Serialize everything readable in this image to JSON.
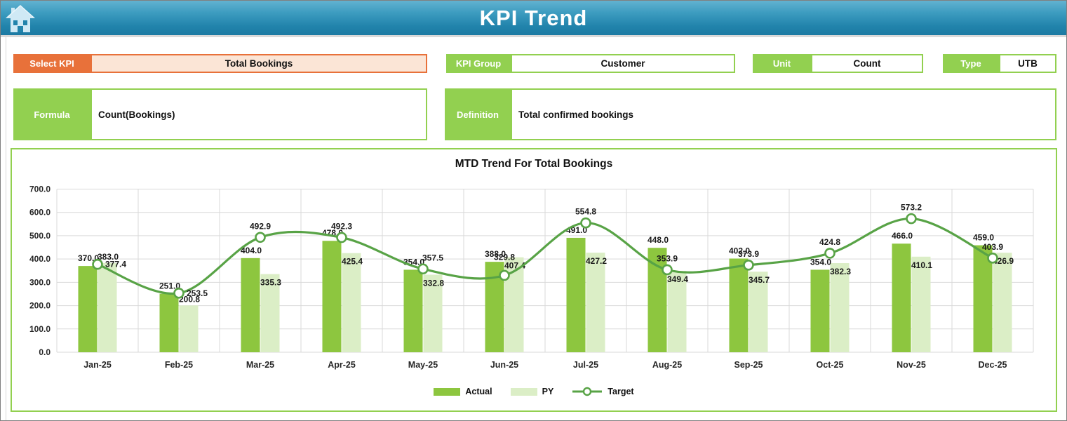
{
  "header": {
    "title": "KPI Trend",
    "home_icon": "home-icon"
  },
  "controls": {
    "select_kpi": {
      "label": "Select KPI",
      "value": "Total Bookings"
    },
    "kpi_group": {
      "label": "KPI Group",
      "value": "Customer"
    },
    "unit": {
      "label": "Unit",
      "value": "Count"
    },
    "type": {
      "label": "Type",
      "value": "UTB"
    },
    "formula": {
      "label": "Formula",
      "value": "Count(Bookings)"
    },
    "definition": {
      "label": "Definition",
      "value": "Total confirmed bookings"
    }
  },
  "colors": {
    "header_top": "#62b2d0",
    "header_bottom": "#1c7aa3",
    "accent_green": "#92d050",
    "accent_orange": "#e8713a",
    "orange_fill": "#fbe5d6",
    "bar_actual": "#8dc63f",
    "bar_py": "#dbeec6",
    "line_target": "#58a346",
    "gridline": "#d9d9d9",
    "text": "#111111"
  },
  "chart_data": {
    "type": "combo",
    "title": "MTD Trend For Total Bookings",
    "categories": [
      "Jan-25",
      "Feb-25",
      "Mar-25",
      "Apr-25",
      "May-25",
      "Jun-25",
      "Jul-25",
      "Aug-25",
      "Sep-25",
      "Oct-25",
      "Nov-25",
      "Dec-25"
    ],
    "series": [
      {
        "name": "Actual",
        "type": "bar",
        "color": "#8dc63f",
        "values": [
          370.0,
          251.0,
          404.0,
          478.0,
          354.0,
          388.0,
          491.0,
          448.0,
          402.0,
          354.0,
          466.0,
          459.0
        ]
      },
      {
        "name": "PY",
        "type": "bar",
        "color": "#dbeec6",
        "values": [
          383.0,
          200.8,
          335.3,
          425.4,
          332.8,
          407.4,
          427.2,
          349.4,
          345.7,
          382.3,
          410.1,
          426.9
        ]
      },
      {
        "name": "Target",
        "type": "line",
        "color": "#58a346",
        "marker": "circle",
        "values": [
          377.4,
          253.5,
          492.9,
          492.3,
          357.5,
          329.8,
          554.8,
          353.9,
          373.9,
          424.8,
          573.2,
          403.9
        ]
      }
    ],
    "ylim": [
      0,
      700
    ],
    "ytick_step": 100,
    "ytick_format": "one_decimal",
    "grid": true,
    "legend_position": "bottom",
    "data_labels": true
  }
}
